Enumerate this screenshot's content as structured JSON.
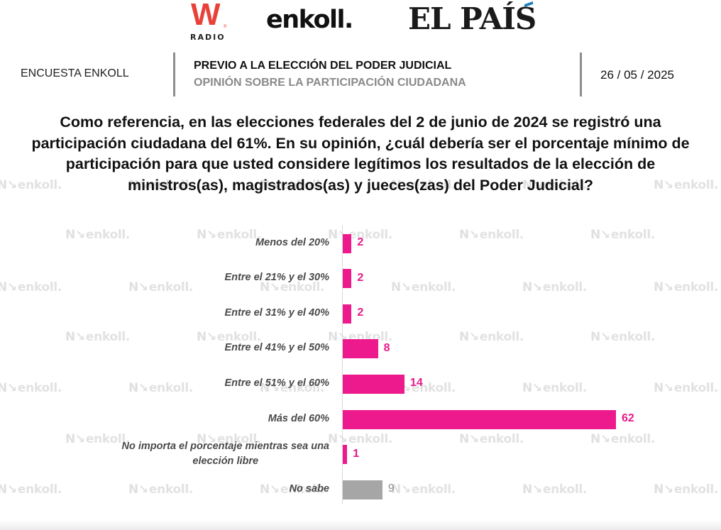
{
  "logos": {
    "wradio": {
      "main": "W",
      "registered": "®",
      "sub": "RADIO"
    },
    "enkoll": "enkoll.",
    "elpais": "EL PAÍS"
  },
  "header": {
    "left": "ENCUESTA ENKOLL",
    "title": "PREVIO A LA ELECCIÓN DEL PODER JUDICIAL",
    "subtitle": "OPINIÓN SOBRE LA PARTICIPACIÓN CIUDADANA",
    "date": "26 / 05 / 2025"
  },
  "question_lines": [
    "Como referencia, en las elecciones federales del 2 de junio de 2024 se registró una",
    "participación ciudadana del 61%. En su opinión, ¿cuál debería ser el porcentaje mínimo de",
    "participación para que usted considere legítimos los resultados de la elección de",
    "ministros(as), magistrados(as) y jueces(zas) del Poder Judicial?"
  ],
  "watermark_text": "enkoll.",
  "colors": {
    "primary_bar": "#ec1a8c",
    "neutral_bar": "#a6a6a6",
    "primary_label": "#e6198a",
    "neutral_label": "#8f8f8f",
    "wradio_red": "#e8413a"
  },
  "chart_data": {
    "type": "bar",
    "orientation": "horizontal",
    "title": "",
    "xlabel": "",
    "ylabel": "",
    "xlim": [
      0,
      62
    ],
    "grid": false,
    "legend": "none",
    "categories": [
      [
        "Menos del 20%"
      ],
      [
        "Entre el 21% y el 30%"
      ],
      [
        "Entre el 31% y el 40%"
      ],
      [
        "Entre el 41% y el 50%"
      ],
      [
        "Entre el 51% y el 60%"
      ],
      [
        "Más del 60%"
      ],
      [
        "No importa el porcentaje mientras sea una",
        "elección libre"
      ],
      [
        "No sabe"
      ]
    ],
    "values": [
      2,
      2,
      2,
      8,
      14,
      62,
      1,
      9
    ],
    "value_labels": [
      "2",
      "2",
      "2",
      "8",
      "14",
      "62",
      "1",
      "9"
    ],
    "bar_color_keys": [
      "primary",
      "primary",
      "primary",
      "primary",
      "primary",
      "primary",
      "primary",
      "neutral"
    ]
  }
}
